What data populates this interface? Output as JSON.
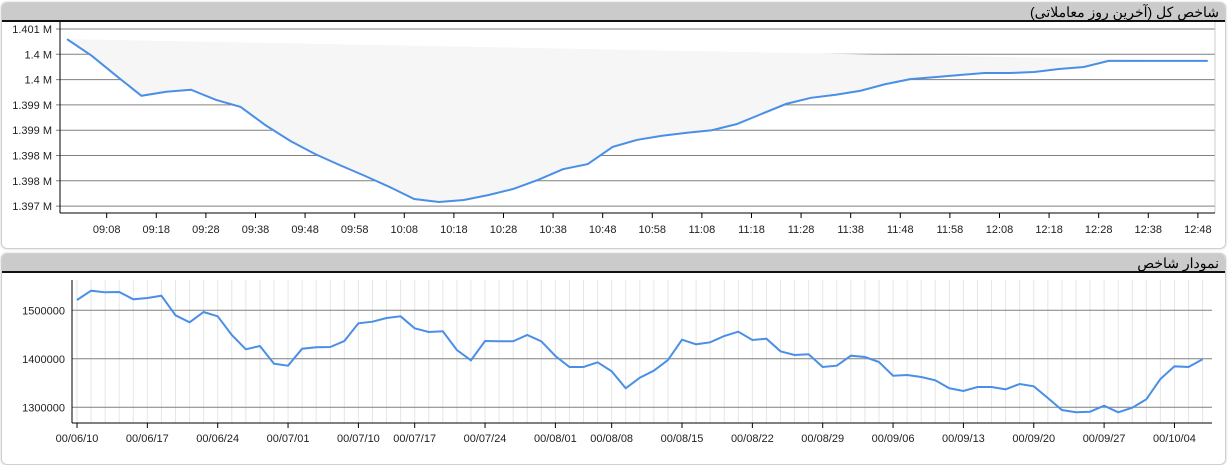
{
  "panels": {
    "intraday_title": "شاخص کل (آخرین روز معاملاتی)",
    "history_title": "نمودار شاخص"
  },
  "colors": {
    "line": "#4a8fe7",
    "area": "#f6f6f6",
    "header": "#cbcbcb",
    "grid": "#808080",
    "vgrid": "#e6e6e6"
  },
  "chart_data": [
    {
      "type": "area",
      "title": "شاخص کل (آخرین روز معاملاتی)",
      "x": [
        "09:00",
        "09:05",
        "09:10",
        "09:15",
        "09:20",
        "09:25",
        "09:30",
        "09:35",
        "09:40",
        "09:45",
        "09:50",
        "09:55",
        "10:00",
        "10:05",
        "10:10",
        "10:15",
        "10:20",
        "10:25",
        "10:30",
        "10:35",
        "10:40",
        "10:45",
        "10:50",
        "10:55",
        "11:00",
        "11:05",
        "11:10",
        "11:15",
        "11:20",
        "11:25",
        "11:30",
        "11:35",
        "11:40",
        "11:45",
        "11:50",
        "11:55",
        "12:00",
        "12:05",
        "12:10",
        "12:15",
        "12:20",
        "12:25",
        "12:30",
        "12:35",
        "12:40",
        "12:45",
        "12:50"
      ],
      "values": [
        1400800,
        1400470,
        1400070,
        1399680,
        1399760,
        1399800,
        1399600,
        1399460,
        1399100,
        1398790,
        1398530,
        1398310,
        1398100,
        1397880,
        1397640,
        1397580,
        1397620,
        1397720,
        1397840,
        1398020,
        1398230,
        1398330,
        1398670,
        1398810,
        1398890,
        1398950,
        1399000,
        1399120,
        1399320,
        1399520,
        1399640,
        1399700,
        1399780,
        1399910,
        1400010,
        1400050,
        1400090,
        1400130,
        1400130,
        1400150,
        1400210,
        1400250,
        1400370,
        1400370,
        1400370,
        1400370,
        1400370
      ],
      "ylim": [
        1397500,
        1401000
      ],
      "yticks": [
        {
          "value": 1401000,
          "label": "1.401 M"
        },
        {
          "value": 1400500,
          "label": "1.4 M"
        },
        {
          "value": 1400000,
          "label": "1.4 M"
        },
        {
          "value": 1399500,
          "label": "1.399 M"
        },
        {
          "value": 1399000,
          "label": "1.399 M"
        },
        {
          "value": 1398500,
          "label": "1.398 M"
        },
        {
          "value": 1398000,
          "label": "1.398 M"
        },
        {
          "value": 1397500,
          "label": "1.397 M"
        }
      ],
      "xticks": [
        "09:08",
        "09:18",
        "09:28",
        "09:38",
        "09:48",
        "09:58",
        "10:08",
        "10:18",
        "10:28",
        "10:38",
        "10:48",
        "10:58",
        "11:08",
        "11:18",
        "11:28",
        "11:38",
        "11:48",
        "11:58",
        "12:08",
        "12:18",
        "12:28",
        "12:38",
        "12:48"
      ],
      "grid": true
    },
    {
      "type": "line",
      "title": "نمودار شاخص",
      "values": [
        1521200,
        1540400,
        1537100,
        1537700,
        1522700,
        1525400,
        1530100,
        1489700,
        1475300,
        1496500,
        1487600,
        1449100,
        1419600,
        1426400,
        1389900,
        1385800,
        1420800,
        1423700,
        1424300,
        1436700,
        1473200,
        1476500,
        1484100,
        1487600,
        1462900,
        1455300,
        1456700,
        1418100,
        1396900,
        1436700,
        1436100,
        1436100,
        1449100,
        1436100,
        1405800,
        1383100,
        1383100,
        1392800,
        1374300,
        1339200,
        1361000,
        1375500,
        1397500,
        1439400,
        1429900,
        1434000,
        1447000,
        1455900,
        1438800,
        1441400,
        1415500,
        1407800,
        1409300,
        1383100,
        1385800,
        1406400,
        1403700,
        1393400,
        1365100,
        1366600,
        1362500,
        1355700,
        1339200,
        1333600,
        1341900,
        1341900,
        1337100,
        1348100,
        1343300,
        1319200,
        1294400,
        1289700,
        1290900,
        1303300,
        1289700,
        1299200,
        1316500,
        1358300,
        1384500,
        1383100,
        1399000
      ],
      "ylim": [
        1270000,
        1560000
      ],
      "yticks": [
        {
          "value": 1300000,
          "label": "1300000"
        },
        {
          "value": 1400000,
          "label": "1400000"
        },
        {
          "value": 1500000,
          "label": "1500000"
        }
      ],
      "xticks": [
        {
          "index": 0,
          "label": "00/06/10"
        },
        {
          "index": 5,
          "label": "00/06/17"
        },
        {
          "index": 10,
          "label": "00/06/24"
        },
        {
          "index": 15,
          "label": "00/07/01"
        },
        {
          "index": 20,
          "label": "00/07/10"
        },
        {
          "index": 24,
          "label": "00/07/17"
        },
        {
          "index": 29,
          "label": "00/07/24"
        },
        {
          "index": 34,
          "label": "00/08/01"
        },
        {
          "index": 38,
          "label": "00/08/08"
        },
        {
          "index": 43,
          "label": "00/08/15"
        },
        {
          "index": 48,
          "label": "00/08/22"
        },
        {
          "index": 53,
          "label": "00/08/29"
        },
        {
          "index": 58,
          "label": "00/09/06"
        },
        {
          "index": 63,
          "label": "00/09/13"
        },
        {
          "index": 68,
          "label": "00/09/20"
        },
        {
          "index": 73,
          "label": "00/09/27"
        },
        {
          "index": 78,
          "label": "00/10/04"
        }
      ],
      "grid": true
    }
  ]
}
